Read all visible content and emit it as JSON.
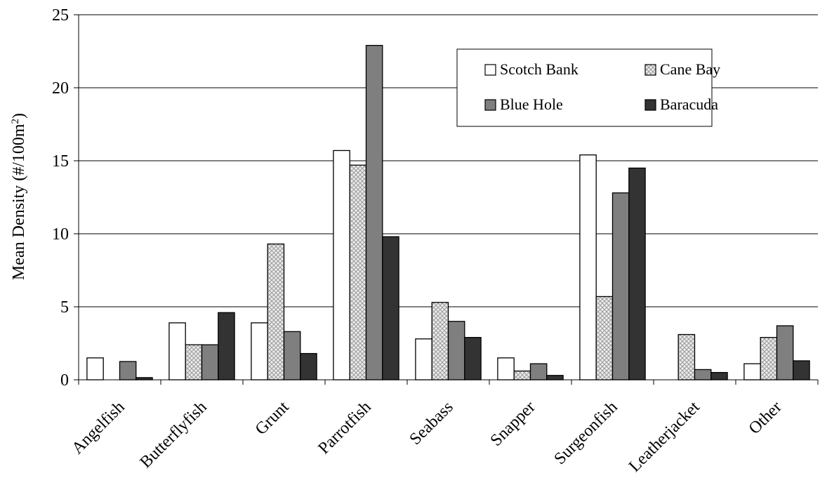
{
  "chart_data": {
    "type": "bar",
    "title": "",
    "xlabel": "",
    "ylabel": "Mean Density (#/100m",
    "ylabel_sup": "2",
    "ylabel_close": ")",
    "ylim": [
      0,
      25
    ],
    "yticks": [
      "0",
      "5",
      "10",
      "15",
      "20",
      "25"
    ],
    "grid": true,
    "legend_position": "top-right",
    "categories": [
      "Angelfish",
      "Butterflyfish",
      "Grunt",
      "Parrotfish",
      "Seabass",
      "Snapper",
      "Surgeonfish",
      "Leatherjacket",
      "Other"
    ],
    "series": [
      {
        "name": "Scotch Bank",
        "pattern": "white",
        "color": "#ffffff",
        "values": [
          1.5,
          3.9,
          3.9,
          15.7,
          2.8,
          1.5,
          15.4,
          0,
          1.1
        ]
      },
      {
        "name": "Cane Bay",
        "pattern": "crosshatch",
        "color": "#d9d9d9",
        "values": [
          0,
          2.4,
          9.3,
          14.7,
          5.3,
          0.6,
          5.7,
          3.1,
          2.9
        ]
      },
      {
        "name": "Blue Hole",
        "pattern": "gray",
        "color": "#7f7f7f",
        "values": [
          1.25,
          2.4,
          3.3,
          22.9,
          4.0,
          1.1,
          12.8,
          0.7,
          3.7
        ]
      },
      {
        "name": "Baracuda",
        "pattern": "dark",
        "color": "#333333",
        "values": [
          0.15,
          4.6,
          1.8,
          9.8,
          2.9,
          0.3,
          14.5,
          0.5,
          1.3
        ]
      }
    ]
  }
}
